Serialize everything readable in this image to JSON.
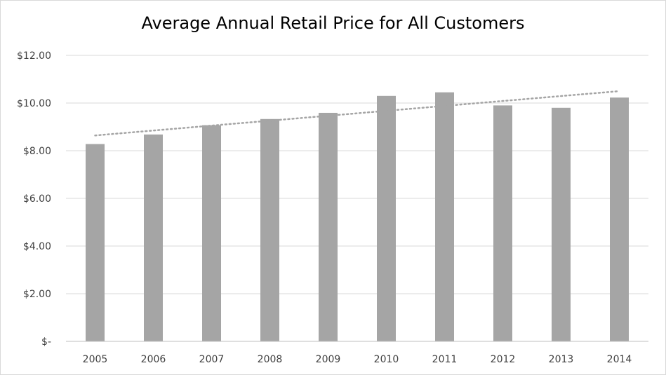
{
  "chart_data": {
    "type": "bar",
    "title": "Average Annual Retail Price for All Customers",
    "categories": [
      "2005",
      "2006",
      "2007",
      "2008",
      "2009",
      "2010",
      "2011",
      "2012",
      "2013",
      "2014"
    ],
    "values": [
      8.28,
      8.68,
      9.07,
      9.33,
      9.59,
      10.3,
      10.45,
      9.9,
      9.8,
      10.23
    ],
    "ylim": [
      0,
      12
    ],
    "y_ticks": [
      0,
      2,
      4,
      6,
      8,
      10,
      12
    ],
    "y_tick_labels": [
      "$-",
      "$2.00",
      "$4.00",
      "$6.00",
      "$8.00",
      "$10.00",
      "$12.00"
    ],
    "grid": true,
    "trendline": {
      "type": "linear",
      "style": "dotted",
      "start": 8.64,
      "end": 10.5
    },
    "colors": {
      "bar": "#a5a5a5",
      "trendline": "#a5a5a5",
      "grid": "#d9d9d9",
      "axis": "#bfbfbf",
      "text": "#404040"
    }
  }
}
